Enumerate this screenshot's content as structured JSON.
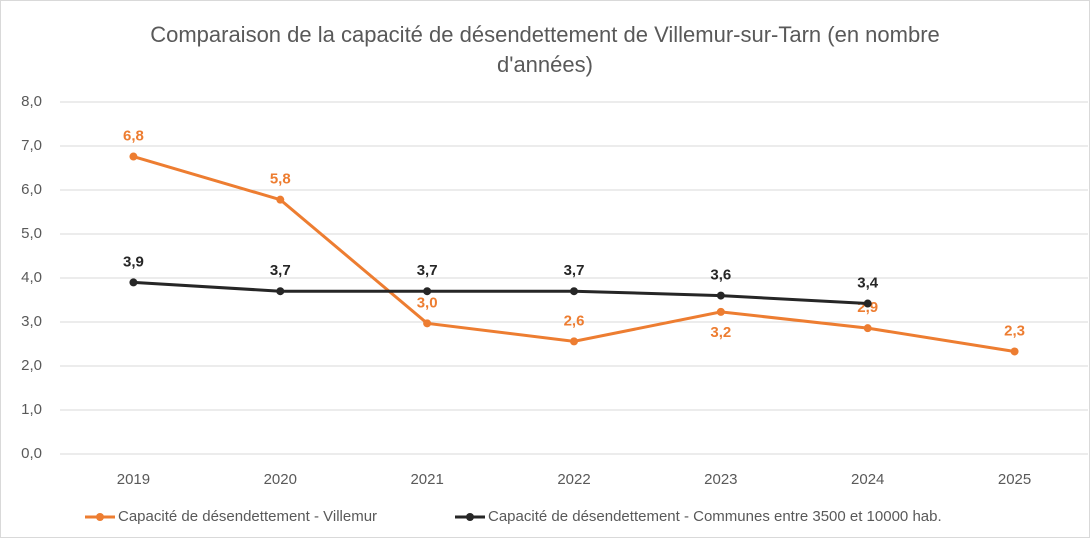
{
  "chart_data": {
    "type": "line",
    "title": "Comparaison de la capacité de désendettement de Villemur-sur-Tarn (en nombre d'années)",
    "categories": [
      "2019",
      "2020",
      "2021",
      "2022",
      "2023",
      "2024",
      "2025"
    ],
    "series": [
      {
        "name": "Capacité de désendettement - Villemur",
        "color": "#ed7d31",
        "values": [
          6.76,
          5.78,
          2.97,
          2.56,
          3.23,
          2.86,
          2.33
        ],
        "value_labels": [
          "6,8",
          "5,8",
          "3,0",
          "2,6",
          "3,2",
          "2,9",
          "2,3"
        ]
      },
      {
        "name": "Capacité de désendettement - Communes entre 3500 et 10000 hab.",
        "color": "#262626",
        "values": [
          3.9,
          3.7,
          3.7,
          3.7,
          3.6,
          3.42,
          null
        ],
        "value_labels": [
          "3,9",
          "3,7",
          "3,7",
          "3,7",
          "3,6",
          "3,4",
          null
        ]
      }
    ],
    "ylim": [
      0,
      8
    ],
    "yticks": [
      {
        "value": 0,
        "label": "0,0"
      },
      {
        "value": 1,
        "label": "1,0"
      },
      {
        "value": 2,
        "label": "2,0"
      },
      {
        "value": 3,
        "label": "3,0"
      },
      {
        "value": 4,
        "label": "4,0"
      },
      {
        "value": 5,
        "label": "5,0"
      },
      {
        "value": 6,
        "label": "6,0"
      },
      {
        "value": 7,
        "label": "7,0"
      },
      {
        "value": 8,
        "label": "8,0"
      }
    ],
    "grid": true,
    "legend": "bottom"
  }
}
